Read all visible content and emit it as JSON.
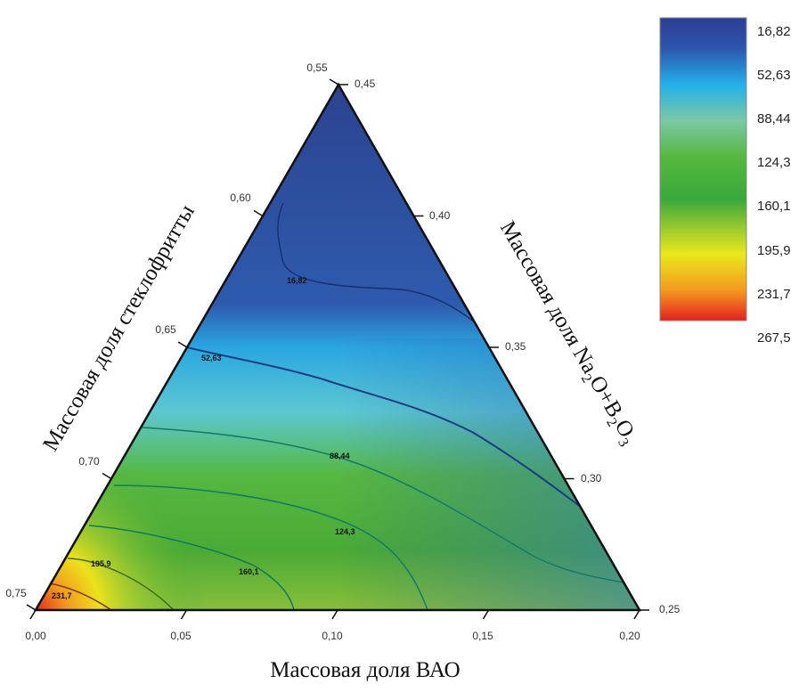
{
  "chart_data": {
    "type": "ternary-contour",
    "axes": {
      "bottom": {
        "label": "Массовая доля ВАО",
        "ticks": [
          "0,00",
          "0,05",
          "0,10",
          "0,15",
          "0,20"
        ],
        "range": [
          0.0,
          0.2
        ]
      },
      "left": {
        "label": "Массовая доля стеклофритты",
        "ticks": [
          "0,55",
          "0,60",
          "0,65",
          "0,70",
          "0,75"
        ],
        "range": [
          0.55,
          0.75
        ]
      },
      "right": {
        "label_parts": [
          "Массовая доля Na",
          "2",
          "O+B",
          "2",
          "O",
          "3"
        ],
        "label": "Массовая доля Na2O+B2O3",
        "ticks": [
          "0,45",
          "0,40",
          "0,35",
          "0,30",
          "0,25"
        ],
        "range": [
          0.25,
          0.45
        ]
      }
    },
    "colorbar": {
      "levels": [
        "16,82",
        "52,63",
        "88,44",
        "124,3",
        "160,1",
        "195,9",
        "231,7",
        "267,5"
      ],
      "values": [
        16.82,
        52.63,
        88.44,
        124.3,
        160.1,
        195.9,
        231.7,
        267.5
      ],
      "colors": [
        "#2c4596",
        "#24b4e6",
        "#7ec6a0",
        "#4fb53a",
        "#3aaa3c",
        "#e8ea18",
        "#f59a20",
        "#e82020"
      ]
    },
    "contours": [
      {
        "label": "16,82",
        "value": 16.82,
        "color": "#1a2f70"
      },
      {
        "label": "52,63",
        "value": 52.63,
        "color": "#1a3e86"
      },
      {
        "label": "88,44",
        "value": 88.44,
        "color": "#127a6a"
      },
      {
        "label": "124,3",
        "value": 124.3,
        "color": "#127a6a"
      },
      {
        "label": "160,1",
        "value": 160.1,
        "color": "#0f7a5a"
      },
      {
        "label": "195,9",
        "value": 195.9,
        "color": "#3f6a1a"
      },
      {
        "label": "231,7",
        "value": 231.7,
        "color": "#7a3a10"
      }
    ]
  }
}
